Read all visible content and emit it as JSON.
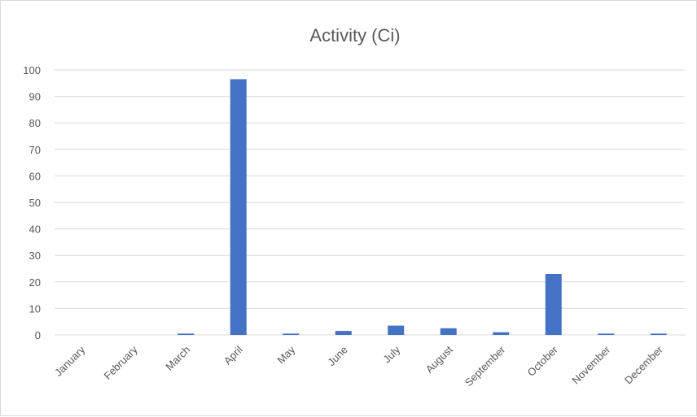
{
  "chart_data": {
    "type": "bar",
    "title": "Activity (Ci)",
    "xlabel": "",
    "ylabel": "",
    "categories": [
      "January",
      "February",
      "March",
      "April",
      "May",
      "June",
      "July",
      "August",
      "September",
      "October",
      "November",
      "December"
    ],
    "values": [
      0,
      0,
      0.5,
      96.5,
      0.5,
      1.5,
      3.5,
      2.5,
      1,
      23,
      0.5,
      0.5
    ],
    "ylim": [
      0,
      100
    ],
    "yticks": [
      0,
      10,
      20,
      30,
      40,
      50,
      60,
      70,
      80,
      90,
      100
    ],
    "grid": true,
    "bar_color": "#4472c4",
    "gridline_color": "#d9d9d9",
    "text_color": "#595959"
  }
}
